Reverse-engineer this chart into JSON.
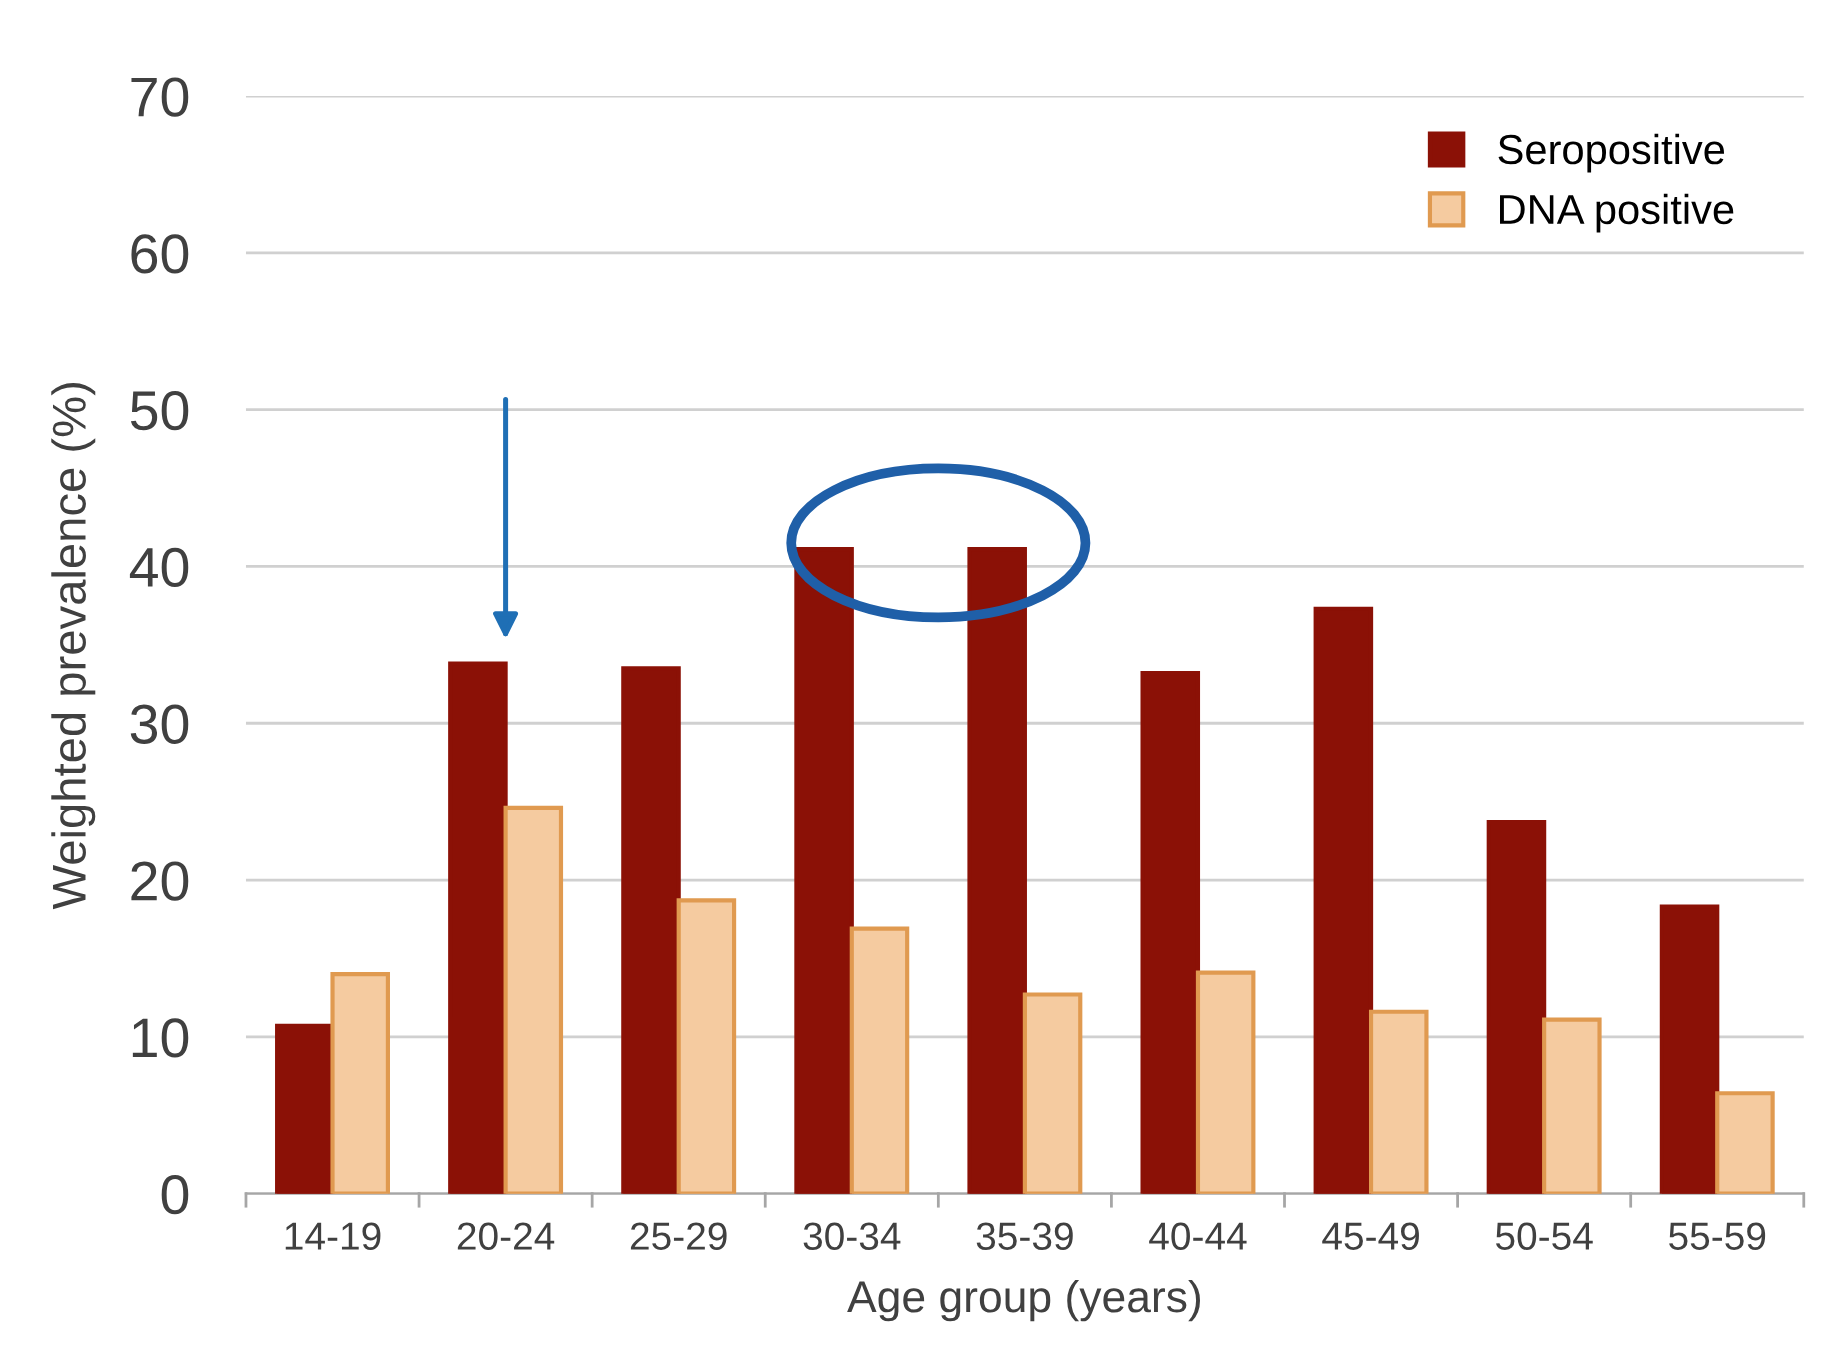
{
  "chart_data": {
    "type": "bar",
    "xlabel": "Age group (years)",
    "ylabel": "Weighted prevalence (%)",
    "categories": [
      "14-19",
      "20-24",
      "25-29",
      "30-34",
      "35-39",
      "40-44",
      "45-49",
      "50-54",
      "55-59"
    ],
    "series": [
      {
        "name": "Seropositive",
        "color": "#8b1106",
        "values": [
          10.7,
          33.8,
          33.5,
          41.1,
          41.1,
          33.2,
          37.3,
          23.7,
          18.3
        ]
      },
      {
        "name": "DNA positive",
        "color": "#f5cba0",
        "values": [
          14.0,
          24.6,
          18.7,
          16.9,
          12.7,
          14.1,
          11.6,
          11.1,
          6.4
        ]
      }
    ],
    "ylim": [
      0,
      70
    ],
    "yticks": [
      0,
      10,
      20,
      30,
      40,
      50,
      60,
      70
    ],
    "grid": "y",
    "legend": "top right"
  }
}
